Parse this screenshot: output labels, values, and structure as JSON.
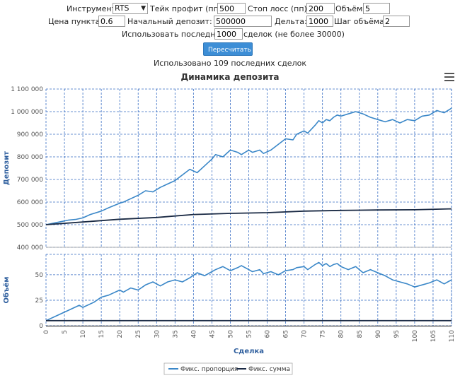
{
  "form": {
    "instrument_label": "Инструмент:",
    "instrument_value": "RTS",
    "take_profit_label": "Тейк профит (пп):",
    "take_profit_value": "500",
    "stop_loss_label": "Стоп лосс (пп):",
    "stop_loss_value": "200",
    "volume_label": "Объём:",
    "volume_value": "5",
    "point_price_label": "Цена пункта:",
    "point_price_value": "0.6",
    "initial_deposit_label": "Начальный депозит:",
    "initial_deposit_value": "500000",
    "delta_label": "Дельта:",
    "delta_value": "1000",
    "volume_step_label": "Шаг объёма:",
    "volume_step_value": "2",
    "use_last_label": "Использовать последние",
    "use_last_value": "1000",
    "use_last_suffix": "сделок (не более 30000)",
    "recalc_button": "Пересчитать",
    "used_text": "Использовано 109 последних сделок"
  },
  "chart_data": {
    "type": "line",
    "title": "Динамика депозита",
    "xlabel": "Сделка",
    "x_ticks": [
      "0",
      "5",
      "10",
      "15",
      "20",
      "25",
      "30",
      "35",
      "40",
      "45",
      "50",
      "55",
      "60",
      "65",
      "70",
      "75",
      "80",
      "85",
      "90",
      "95",
      "100",
      "105",
      "110"
    ],
    "x_range": [
      0,
      110
    ],
    "grid": true,
    "legend_position": "bottom-center",
    "colors": {
      "proportion": "#3a87c8",
      "sum": "#1a2a44",
      "grid": "#3a6fc4",
      "axis_label": "#2f5f9e"
    },
    "deposit_panel": {
      "ylabel": "Депозит",
      "ylim": [
        400000,
        1100000
      ],
      "y_ticks": [
        "400 000",
        "500 000",
        "600 000",
        "700 000",
        "800 000",
        "900 000",
        "1 000 000",
        "1 100 000"
      ],
      "series": [
        {
          "name": "Фикс. пропорция",
          "x": [
            0,
            3,
            6,
            8,
            10,
            12,
            15,
            17,
            20,
            21,
            23,
            25,
            27,
            29,
            31,
            33,
            35,
            37,
            39,
            41,
            43,
            45,
            46,
            48,
            50,
            52,
            53,
            55,
            56,
            58,
            59,
            61,
            63,
            65,
            67,
            68,
            70,
            71,
            73,
            74,
            75,
            76,
            77,
            78,
            79,
            80,
            82,
            84,
            86,
            88,
            90,
            92,
            94,
            96,
            98,
            100,
            102,
            104,
            106,
            108,
            110
          ],
          "y": [
            500000,
            510000,
            520000,
            523000,
            530000,
            545000,
            560000,
            575000,
            595000,
            600000,
            615000,
            630000,
            650000,
            645000,
            665000,
            680000,
            695000,
            720000,
            745000,
            730000,
            760000,
            790000,
            810000,
            800000,
            830000,
            820000,
            810000,
            830000,
            820000,
            830000,
            815000,
            830000,
            855000,
            880000,
            875000,
            900000,
            915000,
            905000,
            940000,
            960000,
            950000,
            965000,
            960000,
            975000,
            985000,
            980000,
            990000,
            1000000,
            990000,
            975000,
            965000,
            955000,
            965000,
            950000,
            965000,
            960000,
            980000,
            985000,
            1005000,
            995000,
            1015000
          ]
        },
        {
          "name": "Фикс. сумма",
          "x": [
            0,
            10,
            20,
            30,
            40,
            50,
            60,
            70,
            80,
            90,
            100,
            110
          ],
          "y": [
            500000,
            512000,
            524000,
            532000,
            545000,
            550000,
            553000,
            560000,
            563000,
            565000,
            566000,
            570000
          ]
        }
      ]
    },
    "volume_panel": {
      "ylabel": "Объём",
      "ylim": [
        0,
        70
      ],
      "y_ticks": [
        "0",
        "25",
        "50"
      ],
      "series": [
        {
          "name": "Фикс. пропорция",
          "x": [
            0,
            3,
            6,
            9,
            10,
            13,
            15,
            17,
            20,
            21,
            23,
            25,
            27,
            29,
            31,
            33,
            35,
            37,
            39,
            41,
            43,
            45,
            46,
            48,
            50,
            52,
            53,
            55,
            56,
            58,
            59,
            61,
            63,
            65,
            67,
            68,
            70,
            71,
            73,
            74,
            75,
            76,
            77,
            78,
            79,
            80,
            82,
            84,
            86,
            88,
            90,
            92,
            94,
            96,
            98,
            100,
            102,
            104,
            106,
            108,
            110
          ],
          "y": [
            5,
            10,
            15,
            20,
            18,
            23,
            28,
            30,
            35,
            33,
            37,
            35,
            40,
            43,
            39,
            43,
            45,
            43,
            47,
            52,
            49,
            53,
            55,
            58,
            54,
            57,
            59,
            55,
            53,
            55,
            51,
            53,
            50,
            54,
            55,
            57,
            58,
            55,
            60,
            62,
            59,
            61,
            58,
            60,
            61,
            58,
            55,
            58,
            52,
            55,
            52,
            49,
            45,
            43,
            41,
            38,
            40,
            42,
            45,
            41,
            45
          ]
        },
        {
          "name": "Фикс. сумма",
          "x": [
            0,
            110
          ],
          "y": [
            5,
            5
          ]
        }
      ]
    }
  }
}
